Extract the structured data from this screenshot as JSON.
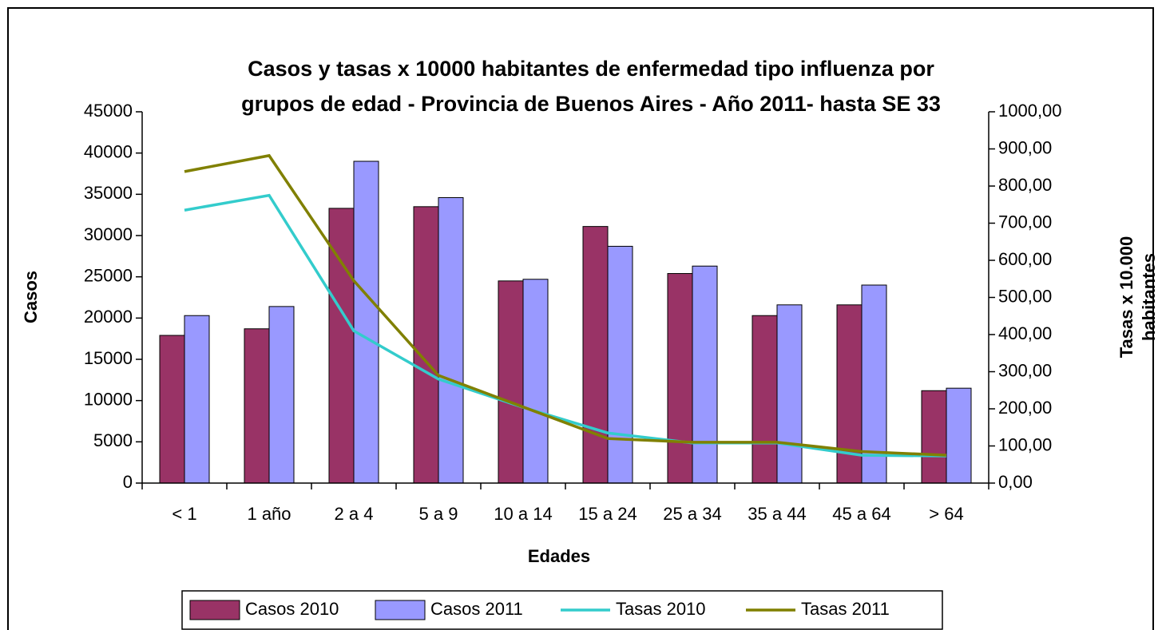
{
  "chart_data": {
    "type": "bar_line",
    "title": [
      "Casos y tasas x 10000 habitantes de enfermedad tipo influenza por",
      "grupos de edad - Provincia de Buenos Aires - Año 2011- hasta SE 33"
    ],
    "x_label": "Edades",
    "y_label": "Casos",
    "y2_label": [
      "Tasas x 10.000",
      "habitantes"
    ],
    "categories": [
      "< 1",
      "1 año",
      "2 a 4",
      "5 a 9",
      "10 a 14",
      "15 a 24",
      "25 a 34",
      "35 a 44",
      "45 a 64",
      "> 64"
    ],
    "series": [
      {
        "name": "Casos 2010",
        "type": "bar",
        "color": "#993366",
        "values": [
          17900,
          18700,
          33300,
          33500,
          24500,
          31100,
          25400,
          20300,
          21600,
          11200
        ]
      },
      {
        "name": "Casos 2011",
        "type": "bar",
        "color": "#9999ff",
        "values": [
          20300,
          21400,
          39000,
          34600,
          24700,
          28700,
          26300,
          21600,
          24000,
          11500
        ]
      },
      {
        "name": "Tasas 2010",
        "type": "line",
        "axis": "y2",
        "color": "#33cccc",
        "values": [
          735,
          775,
          410,
          280,
          204,
          135,
          108,
          108,
          75,
          73
        ]
      },
      {
        "name": "Tasas 2011",
        "type": "line",
        "axis": "y2",
        "color": "#808000",
        "values": [
          839,
          882,
          545,
          290,
          205,
          120,
          110,
          110,
          85,
          75
        ]
      }
    ],
    "ylim": [
      0,
      45000
    ],
    "yticks": [
      0,
      5000,
      10000,
      15000,
      20000,
      25000,
      30000,
      35000,
      40000,
      45000
    ],
    "y2lim": [
      0,
      1000
    ],
    "y2ticks": [
      {
        "value": 0,
        "label": "0,00"
      },
      {
        "value": 100,
        "label": "100,00"
      },
      {
        "value": 200,
        "label": "200,00"
      },
      {
        "value": 300,
        "label": "300,00"
      },
      {
        "value": 400,
        "label": "400,00"
      },
      {
        "value": 500,
        "label": "500,00"
      },
      {
        "value": 600,
        "label": "600,00"
      },
      {
        "value": 700,
        "label": "700,00"
      },
      {
        "value": 800,
        "label": "800,00"
      },
      {
        "value": 900,
        "label": "900,00"
      },
      {
        "value": 1000,
        "label": "1000,00"
      }
    ],
    "legend": "bottom",
    "grid": false
  }
}
